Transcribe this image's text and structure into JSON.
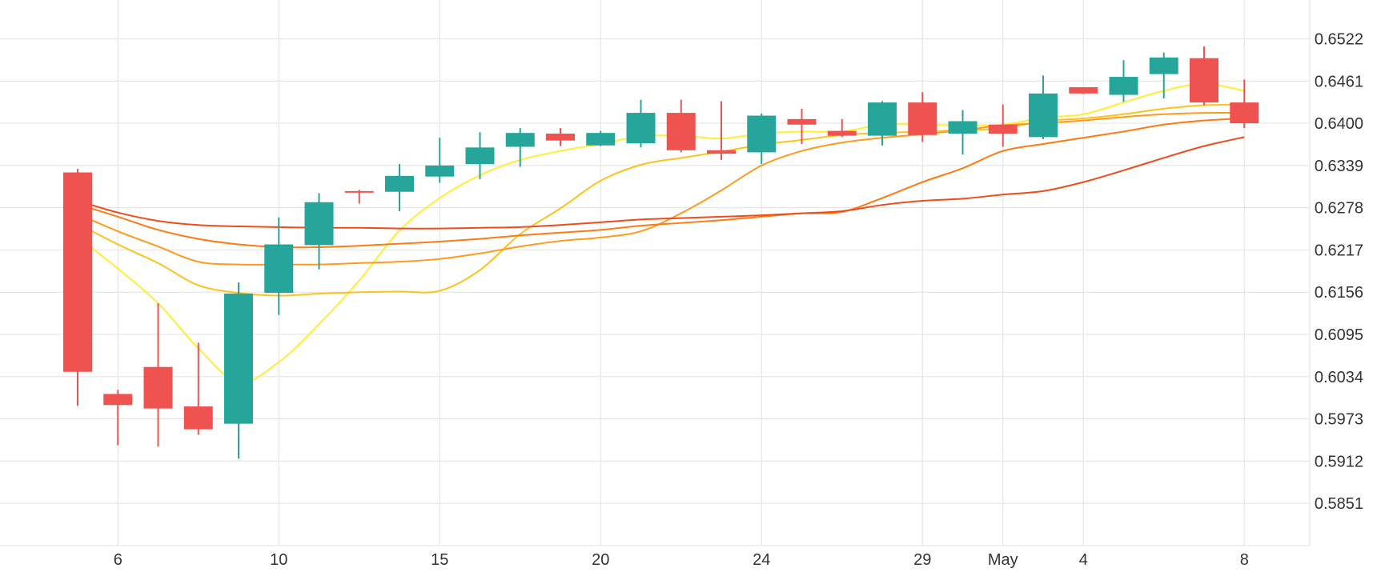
{
  "chart_data": {
    "type": "candlestick",
    "title": "",
    "xlabel": "",
    "ylabel": "",
    "ylim": [
      0.579,
      0.6578
    ],
    "yticks": [
      "0.6522",
      "0.6461",
      "0.6400",
      "0.6339",
      "0.6278",
      "0.6217",
      "0.6156",
      "0.6095",
      "0.6034",
      "0.5973",
      "0.5912",
      "0.5851"
    ],
    "xticks": [
      {
        "label": "6",
        "index": 1
      },
      {
        "label": "10",
        "index": 5
      },
      {
        "label": "15",
        "index": 9
      },
      {
        "label": "20",
        "index": 13
      },
      {
        "label": "24",
        "index": 17
      },
      {
        "label": "29",
        "index": 21
      },
      {
        "label": "May",
        "index": 23
      },
      {
        "label": "4",
        "index": 25
      },
      {
        "label": "8",
        "index": 29
      }
    ],
    "grid": true,
    "colors": {
      "up": "#26a69a",
      "down": "#ef5350",
      "grid": "#e6e6e6",
      "text": "#333333"
    },
    "candles": [
      {
        "o": 0.6329,
        "h": 0.6334,
        "l": 0.5992,
        "c": 0.6041
      },
      {
        "o": 0.6009,
        "h": 0.6015,
        "l": 0.5935,
        "c": 0.5993
      },
      {
        "o": 0.6048,
        "h": 0.614,
        "l": 0.5933,
        "c": 0.5988
      },
      {
        "o": 0.5991,
        "h": 0.6083,
        "l": 0.595,
        "c": 0.5958
      },
      {
        "o": 0.5966,
        "h": 0.617,
        "l": 0.5916,
        "c": 0.6154
      },
      {
        "o": 0.6155,
        "h": 0.6264,
        "l": 0.6123,
        "c": 0.6225
      },
      {
        "o": 0.6224,
        "h": 0.6299,
        "l": 0.6189,
        "c": 0.6286
      },
      {
        "o": 0.6302,
        "h": 0.6304,
        "l": 0.6284,
        "c": 0.63
      },
      {
        "o": 0.6301,
        "h": 0.6341,
        "l": 0.6273,
        "c": 0.6324
      },
      {
        "o": 0.6323,
        "h": 0.6379,
        "l": 0.6314,
        "c": 0.6339
      },
      {
        "o": 0.6341,
        "h": 0.6387,
        "l": 0.6319,
        "c": 0.6365
      },
      {
        "o": 0.6366,
        "h": 0.6393,
        "l": 0.6337,
        "c": 0.6386
      },
      {
        "o": 0.6385,
        "h": 0.6393,
        "l": 0.6367,
        "c": 0.6375
      },
      {
        "o": 0.6368,
        "h": 0.6389,
        "l": 0.6367,
        "c": 0.6386
      },
      {
        "o": 0.6371,
        "h": 0.6434,
        "l": 0.6365,
        "c": 0.6415
      },
      {
        "o": 0.6415,
        "h": 0.6434,
        "l": 0.6358,
        "c": 0.6361
      },
      {
        "o": 0.6361,
        "h": 0.6432,
        "l": 0.6347,
        "c": 0.6356
      },
      {
        "o": 0.6358,
        "h": 0.6414,
        "l": 0.6341,
        "c": 0.6411
      },
      {
        "o": 0.6406,
        "h": 0.6421,
        "l": 0.637,
        "c": 0.6398
      },
      {
        "o": 0.6389,
        "h": 0.6406,
        "l": 0.638,
        "c": 0.6382
      },
      {
        "o": 0.6382,
        "h": 0.6432,
        "l": 0.6368,
        "c": 0.643
      },
      {
        "o": 0.643,
        "h": 0.6445,
        "l": 0.6373,
        "c": 0.6383
      },
      {
        "o": 0.6385,
        "h": 0.6419,
        "l": 0.6355,
        "c": 0.6403
      },
      {
        "o": 0.6398,
        "h": 0.6427,
        "l": 0.6366,
        "c": 0.6385
      },
      {
        "o": 0.638,
        "h": 0.6469,
        "l": 0.6377,
        "c": 0.6443
      },
      {
        "o": 0.6452,
        "h": 0.6452,
        "l": 0.6442,
        "c": 0.6443
      },
      {
        "o": 0.6441,
        "h": 0.6491,
        "l": 0.6431,
        "c": 0.6467
      },
      {
        "o": 0.6471,
        "h": 0.6502,
        "l": 0.6436,
        "c": 0.6495
      },
      {
        "o": 0.6494,
        "h": 0.6511,
        "l": 0.6426,
        "c": 0.643
      },
      {
        "o": 0.643,
        "h": 0.6463,
        "l": 0.6393,
        "c": 0.64
      }
    ],
    "series": [
      {
        "color": "#ffee33",
        "x": [
          0,
          1,
          2,
          3,
          4,
          5,
          6,
          7,
          8,
          9,
          10,
          11,
          12,
          13,
          14,
          15,
          16,
          17,
          18,
          19,
          20,
          21,
          22,
          23,
          24,
          25,
          26,
          27,
          28,
          29
        ],
        "values": [
          0.6236,
          0.619,
          0.614,
          0.6075,
          0.6026,
          0.6055,
          0.611,
          0.6173,
          0.6245,
          0.6292,
          0.6325,
          0.6347,
          0.636,
          0.637,
          0.6381,
          0.6382,
          0.6378,
          0.6385,
          0.6388,
          0.6388,
          0.6398,
          0.6398,
          0.6397,
          0.6398,
          0.6408,
          0.6413,
          0.643,
          0.6447,
          0.6457,
          0.6447
        ]
      },
      {
        "color": "#ffc21a",
        "x": [
          0,
          1,
          2,
          3,
          4,
          5,
          6,
          7,
          8,
          9,
          10,
          11,
          12,
          13,
          14,
          15,
          16,
          17,
          18,
          19,
          20,
          21,
          22,
          23,
          24,
          25,
          26,
          27,
          28,
          29
        ],
        "values": [
          0.6255,
          0.6225,
          0.6198,
          0.6166,
          0.6155,
          0.6151,
          0.6154,
          0.6156,
          0.6157,
          0.6158,
          0.6188,
          0.624,
          0.6277,
          0.6317,
          0.634,
          0.635,
          0.6359,
          0.6369,
          0.6376,
          0.6383,
          0.6386,
          0.6388,
          0.639,
          0.6393,
          0.6403,
          0.6407,
          0.6413,
          0.6421,
          0.6426,
          0.6427
        ]
      },
      {
        "color": "#ff9a1a",
        "x": [
          0,
          1,
          2,
          3,
          4,
          5,
          6,
          7,
          8,
          9,
          10,
          11,
          12,
          13,
          14,
          15,
          16,
          17,
          18,
          19,
          20,
          21,
          22,
          23,
          24,
          25,
          26,
          27,
          28,
          29
        ],
        "values": [
          0.6269,
          0.6244,
          0.6222,
          0.62,
          0.6196,
          0.6196,
          0.6196,
          0.6198,
          0.62,
          0.6204,
          0.6212,
          0.6222,
          0.623,
          0.6235,
          0.6244,
          0.627,
          0.6303,
          0.6339,
          0.636,
          0.6372,
          0.6379,
          0.6384,
          0.639,
          0.6397,
          0.64,
          0.6404,
          0.6409,
          0.6413,
          0.6415,
          0.6415
        ]
      },
      {
        "color": "#ff7a10",
        "x": [
          0,
          1,
          2,
          3,
          4,
          5,
          6,
          7,
          8,
          9,
          10,
          11,
          12,
          13,
          14,
          15,
          16,
          17,
          18,
          19,
          20,
          21,
          22,
          23,
          24,
          25,
          26,
          27,
          28,
          29
        ],
        "values": [
          0.6283,
          0.6265,
          0.6246,
          0.6233,
          0.6225,
          0.6221,
          0.6221,
          0.6223,
          0.6226,
          0.6229,
          0.6233,
          0.6238,
          0.6242,
          0.6246,
          0.6252,
          0.6256,
          0.626,
          0.6265,
          0.627,
          0.6272,
          0.6292,
          0.6315,
          0.6335,
          0.636,
          0.637,
          0.6379,
          0.6388,
          0.6398,
          0.6404,
          0.6407
        ]
      },
      {
        "color": "#f04b1a",
        "x": [
          0,
          1,
          2,
          3,
          4,
          5,
          6,
          7,
          8,
          9,
          10,
          11,
          12,
          13,
          14,
          15,
          16,
          17,
          18,
          19,
          20,
          21,
          22,
          23,
          24,
          25,
          26,
          27,
          28,
          29
        ],
        "values": [
          0.6288,
          0.6271,
          0.6259,
          0.6253,
          0.6251,
          0.625,
          0.6249,
          0.6249,
          0.6248,
          0.6248,
          0.6249,
          0.625,
          0.6253,
          0.6257,
          0.6261,
          0.6263,
          0.6265,
          0.6267,
          0.627,
          0.6273,
          0.6282,
          0.6288,
          0.6291,
          0.6297,
          0.6302,
          0.6315,
          0.6332,
          0.635,
          0.6367,
          0.638
        ]
      }
    ]
  }
}
